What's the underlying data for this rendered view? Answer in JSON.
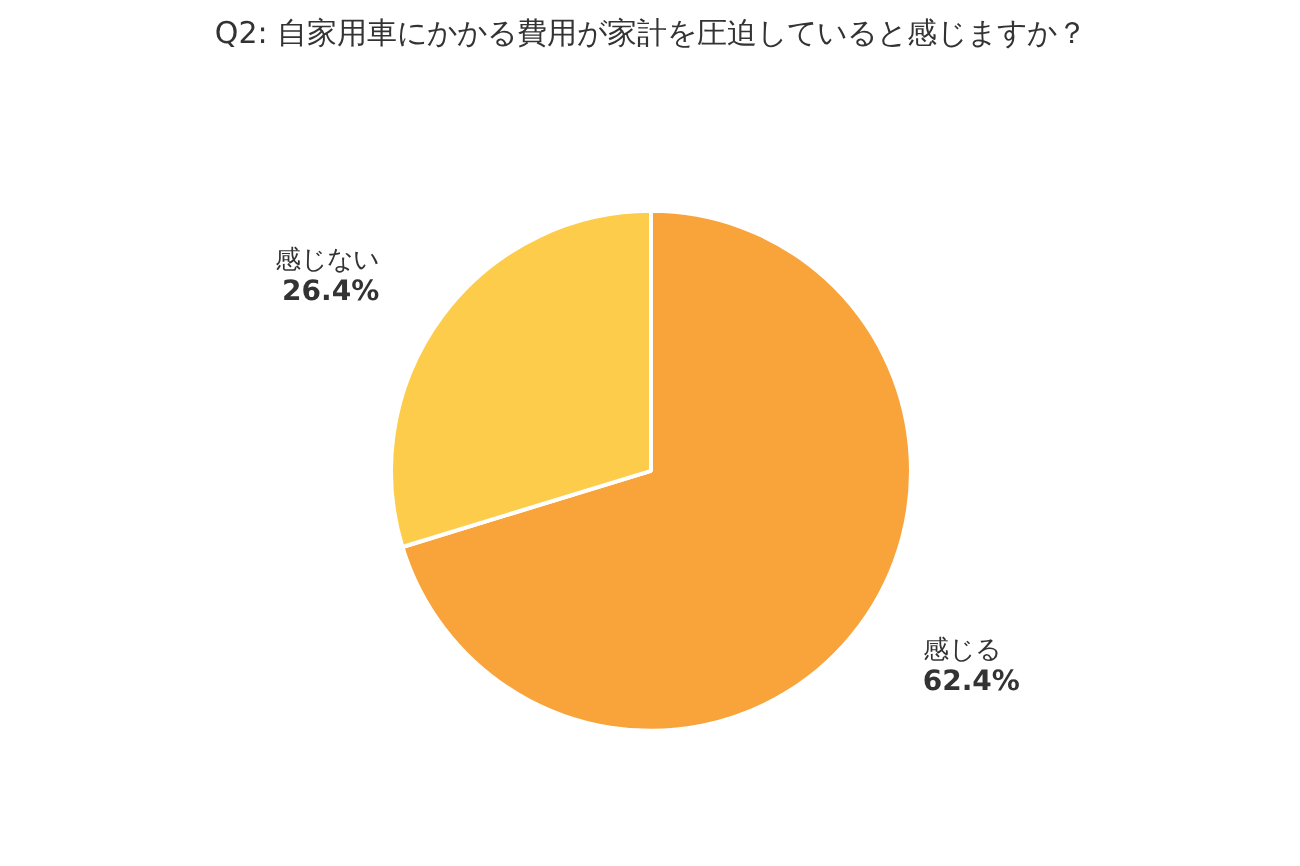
{
  "chart_data": {
    "type": "pie",
    "title": "Q2: 自家用車にかかる費用が家計を圧迫していると感じますか？",
    "categories": [
      "感じる",
      "感じない"
    ],
    "values": [
      62.4,
      26.4
    ],
    "colors": [
      "#f9a33b",
      "#fdcc4a"
    ],
    "value_labels": [
      "62.4%",
      "26.4%"
    ]
  }
}
